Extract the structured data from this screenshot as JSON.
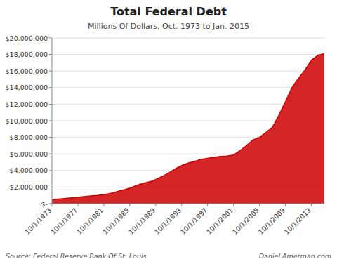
{
  "chart_data": {
    "type": "area",
    "title": "Total Federal Debt",
    "subtitle": "Millions Of Dollars, Oct. 1973 to Jan. 2015",
    "annotations": [
      "Source:  Federal Reserve Bank Of St. Louis",
      "Daniel Amerman.com"
    ],
    "color": "#cc0000",
    "grid": true,
    "x": [
      1973,
      1974,
      1975,
      1976,
      1977,
      1978,
      1979,
      1980,
      1981,
      1982,
      1983,
      1984,
      1985,
      1986,
      1987,
      1988,
      1989,
      1990,
      1991,
      1992,
      1993,
      1994,
      1995,
      1996,
      1997,
      1998,
      1999,
      2000,
      2001,
      2002,
      2003,
      2004,
      2005,
      2006,
      2007,
      2008,
      2009,
      2010,
      2011,
      2012,
      2013,
      2014,
      2015
    ],
    "values": [
      475000,
      545000,
      620000,
      710000,
      780000,
      850000,
      930000,
      1000000,
      1090000,
      1220000,
      1450000,
      1650000,
      1870000,
      2180000,
      2430000,
      2620000,
      2900000,
      3280000,
      3700000,
      4200000,
      4600000,
      4900000,
      5100000,
      5350000,
      5470000,
      5600000,
      5700000,
      5750000,
      5870000,
      6400000,
      7000000,
      7700000,
      8000000,
      8600000,
      9200000,
      10700000,
      12300000,
      14000000,
      15100000,
      16100000,
      17300000,
      17900000,
      18100000
    ],
    "xlim": [
      1973,
      2015
    ],
    "xticks": [
      {
        "value": 1973,
        "label": "10/1/1973"
      },
      {
        "value": 1977,
        "label": "10/1/1977"
      },
      {
        "value": 1981,
        "label": "10/1/1981"
      },
      {
        "value": 1985,
        "label": "10/1/1985"
      },
      {
        "value": 1989,
        "label": "10/1/1989"
      },
      {
        "value": 1993,
        "label": "10/1/1993"
      },
      {
        "value": 1997,
        "label": "10/1/1997"
      },
      {
        "value": 2001,
        "label": "10/1/2001"
      },
      {
        "value": 2005,
        "label": "10/1/2005"
      },
      {
        "value": 2009,
        "label": "10/1/2009"
      },
      {
        "value": 2013,
        "label": "10/1/2013"
      }
    ],
    "ylim": [
      0,
      20000000
    ],
    "yticks": [
      {
        "value": 0,
        "label": "$-"
      },
      {
        "value": 2000000,
        "label": "$2,000,000"
      },
      {
        "value": 4000000,
        "label": "$4,000,000"
      },
      {
        "value": 6000000,
        "label": "$6,000,000"
      },
      {
        "value": 8000000,
        "label": "$8,000,000"
      },
      {
        "value": 10000000,
        "label": "$10,000,000"
      },
      {
        "value": 12000000,
        "label": "$12,000,000"
      },
      {
        "value": 14000000,
        "label": "$14,000,000"
      },
      {
        "value": 16000000,
        "label": "$16,000,000"
      },
      {
        "value": 18000000,
        "label": "$18,000,000"
      },
      {
        "value": 20000000,
        "label": "$20,000,000"
      }
    ]
  }
}
